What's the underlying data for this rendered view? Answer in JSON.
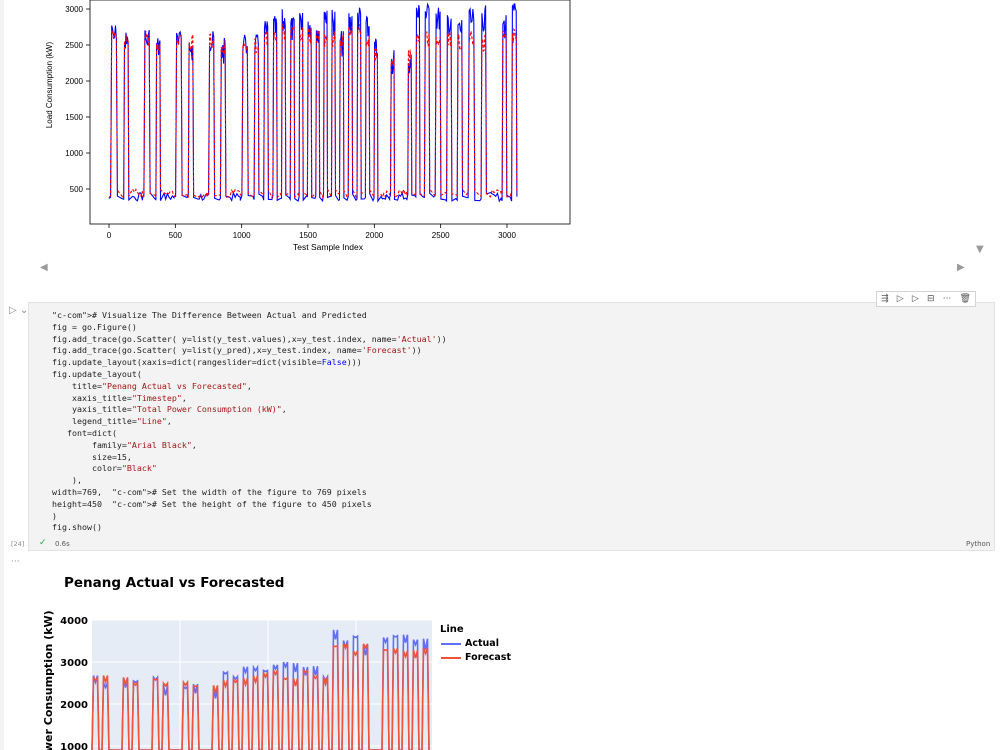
{
  "top_plot": {
    "ylabel": "Load Consumption (kW)",
    "xlabel": "Test Sample Index",
    "y_ticks": [
      "3000",
      "2500",
      "2000",
      "1500",
      "1000",
      "500"
    ],
    "x_ticks": [
      "0",
      "500",
      "1000",
      "1500",
      "2000",
      "2500",
      "3000"
    ]
  },
  "code_cell": {
    "execution_count": "[24]",
    "exec_time": "0.6s",
    "language": "Python",
    "lines": [
      "# Visualize The Difference Between Actual and Predicted",
      "fig = go.Figure()",
      "fig.add_trace(go.Scatter( y=list(y_test.values),x=y_test.index, name='Actual'))",
      "fig.add_trace(go.Scatter( y=list(y_pred),x=y_test.index, name='Forecast'))",
      "fig.update_layout(xaxis=dict(rangeslider=dict(visible=False)))",
      "fig.update_layout(",
      "    title=\"Penang Actual vs Forecasted\",",
      "    xaxis_title=\"Timestep\",",
      "    yaxis_title=\"Total Power Consumption (kW)\",",
      "    legend_title=\"Line\",",
      "   font=dict(",
      "        family=\"Arial Black\",",
      "        size=15,",
      "        color=\"Black\"",
      "    ),",
      "width=769,  # Set the width of the figure to 769 pixels",
      "height=450  # Set the height of the figure to 450 pixels",
      ")",
      "fig.show()"
    ]
  },
  "plotly": {
    "title": "Penang Actual vs Forecasted",
    "ylabel": "ower Consumption (kW)",
    "y_ticks": [
      "4000",
      "3000",
      "2000",
      "1000"
    ],
    "legend_title": "Line",
    "legend": [
      "Actual",
      "Forecast"
    ]
  },
  "colors": {
    "mpl_actual": "#0000ff",
    "mpl_forecast": "#ff0000",
    "plotly_actual": "#636efa",
    "plotly_forecast": "#ef553b",
    "plotly_bg": "#e5ecf6"
  },
  "chart_data": [
    {
      "type": "line",
      "xlabel": "Test Sample Index",
      "ylabel": "Load Consumption (kW)",
      "xlim": [
        0,
        3300
      ],
      "ylim": [
        200,
        3100
      ],
      "series": [
        {
          "name": "",
          "color": "blue"
        },
        {
          "name": "",
          "color": "red",
          "style": "dashed"
        }
      ],
      "cycles_x": [
        0,
        102,
        178,
        252,
        345,
        415,
        490,
        588,
        668,
        740,
        830,
        912,
        990,
        1085,
        1158,
        1228,
        1292,
        1358,
        1425,
        1488,
        1552,
        1610,
        1670,
        1730,
        1795,
        1862,
        1925,
        1990,
        2050,
        2115,
        2175,
        2245,
        2305,
        2368,
        2448,
        2535,
        2615,
        2695,
        2795,
        2875,
        2955,
        3025,
        3105,
        3170,
        3240,
        3290
      ],
      "peaks_actual": [
        2800,
        2700,
        0,
        2750,
        2650,
        0,
        2700,
        2600,
        0,
        2700,
        2600,
        0,
        2650,
        2650,
        2850,
        2900,
        3000,
        2900,
        3050,
        2950,
        2900,
        3100,
        3000,
        2700,
        3000,
        3050,
        2900,
        2600,
        0,
        2450,
        0,
        2400,
        3100,
        3100,
        3050,
        3000,
        2900,
        3000,
        3050,
        0,
        2950,
        3100
      ],
      "peaks_forecast": [
        2750,
        2700,
        0,
        2700,
        2650,
        0,
        2650,
        2650,
        0,
        2650,
        2600,
        0,
        2600,
        2600,
        2700,
        2700,
        2800,
        2800,
        2800,
        2750,
        2750,
        2700,
        2700,
        2650,
        2800,
        2800,
        2700,
        2500,
        0,
        2400,
        0,
        2500,
        2700,
        2700,
        2700,
        2700,
        2650,
        2700,
        2650,
        0,
        2700,
        2750
      ]
    },
    {
      "type": "line",
      "title": "Penang Actual vs Forecasted",
      "ylabel": "Total Power Consumption (kW)",
      "ylim": [
        0,
        4100
      ],
      "series": [
        {
          "name": "Actual"
        },
        {
          "name": "Forecast"
        }
      ],
      "peaks_actual": [
        2800,
        2750,
        0,
        2750,
        2700,
        0,
        2700,
        2650,
        0,
        2700,
        2650,
        0,
        2650,
        2900,
        2900,
        3000,
        3050,
        3050,
        3100,
        3050,
        3000,
        3100,
        3050,
        2900,
        3800,
        3750,
        3700,
        3700,
        0,
        3800,
        3800,
        3750,
        3650,
        3600
      ],
      "peaks_forecast": [
        2750,
        2700,
        0,
        2700,
        2700,
        0,
        2650,
        2650,
        0,
        2650,
        2600,
        0,
        2600,
        2650,
        2700,
        2800,
        2800,
        2800,
        2850,
        2800,
        2750,
        2800,
        2750,
        2650,
        3500,
        3500,
        3400,
        3450,
        0,
        3450,
        3500,
        3400,
        3400,
        3350
      ]
    }
  ]
}
